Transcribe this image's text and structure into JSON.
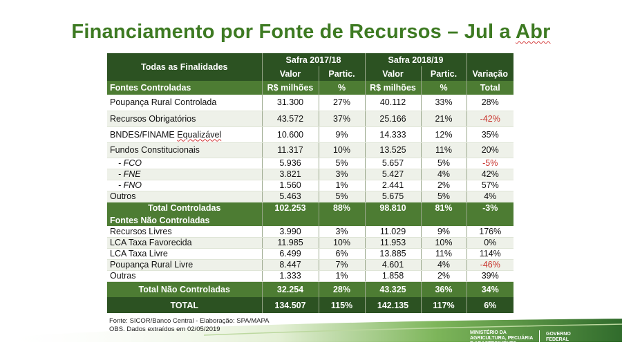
{
  "title": "Financiamento por Fonte de Recursos – Jul a Abr",
  "title_main": "Financiamento por Fonte de Recursos – Jul a ",
  "title_end": "Abr",
  "header": {
    "todas": "Todas as Finalidades",
    "safra1": "Safra 2017/18",
    "safra2": "Safra 2018/19",
    "valor": "Valor",
    "partic": "Partic.",
    "variacao": "Variação",
    "fontes_controladas": "Fontes Controladas",
    "rs_milhoes": "R$ milhões",
    "pct": "%",
    "total": "Total"
  },
  "rows_controladas": [
    {
      "label": "Poupança Rural Controlada",
      "v1": "31.300",
      "p1": "27%",
      "v2": "40.112",
      "p2": "33%",
      "var": "28%"
    },
    {
      "label": "Recursos Obrigatórios",
      "v1": "43.572",
      "p1": "37%",
      "v2": "25.166",
      "p2": "21%",
      "var": "-42%"
    },
    {
      "label_a": "BNDES/FINAME ",
      "label_b": "Equalizável",
      "v1": "10.600",
      "p1": "9%",
      "v2": "14.333",
      "p2": "12%",
      "var": "35%"
    },
    {
      "label": "Fundos Constitucionais",
      "v1": "11.317",
      "p1": "10%",
      "v2": "13.525",
      "p2": "11%",
      "var": "20%"
    },
    {
      "label": "- FCO",
      "v1": "5.936",
      "p1": "5%",
      "v2": "5.657",
      "p2": "5%",
      "var": "-5%"
    },
    {
      "label": "- FNE",
      "v1": "3.821",
      "p1": "3%",
      "v2": "5.427",
      "p2": "4%",
      "var": "42%"
    },
    {
      "label": "- FNO",
      "v1": "1.560",
      "p1": "1%",
      "v2": "2.441",
      "p2": "2%",
      "var": "57%"
    },
    {
      "label": "Outros",
      "v1": "5.463",
      "p1": "5%",
      "v2": "5.675",
      "p2": "5%",
      "var": "4%"
    }
  ],
  "total_controladas": {
    "label": "Total Controladas",
    "v1": "102.253",
    "p1": "88%",
    "v2": "98.810",
    "p2": "81%",
    "var": "-3%"
  },
  "fontes_nao_controladas": "Fontes Não Controladas",
  "rows_nao_controladas": [
    {
      "label": "Recursos Livres",
      "v1": "3.990",
      "p1": "3%",
      "v2": "11.029",
      "p2": "9%",
      "var": "176%"
    },
    {
      "label": "LCA Taxa Favorecida",
      "v1": "11.985",
      "p1": "10%",
      "v2": "11.953",
      "p2": "10%",
      "var": "0%"
    },
    {
      "label": "LCA Taxa Livre",
      "v1": "6.499",
      "p1": "6%",
      "v2": "13.885",
      "p2": "11%",
      "var": "114%"
    },
    {
      "label": "Poupança Rural Livre",
      "v1": "8.447",
      "p1": "7%",
      "v2": "4.601",
      "p2": "4%",
      "var": "-46%"
    },
    {
      "label": "Outras",
      "v1": "1.333",
      "p1": "1%",
      "v2": "1.858",
      "p2": "2%",
      "var": "39%"
    }
  ],
  "total_nao_controladas": {
    "label": "Total Não Controladas",
    "v1": "32.254",
    "p1": "28%",
    "v2": "43.325",
    "p2": "36%",
    "var": "34%"
  },
  "total_geral": {
    "label": "TOTAL",
    "v1": "134.507",
    "p1": "115%",
    "v2": "142.135",
    "p2": "117%",
    "var": "6%"
  },
  "notes": {
    "fonte": "Fonte: SICOR/Banco Central - Elaboração: SPA/MAPA",
    "obs": "OBS. Dados extraídos em 02/05/2019"
  },
  "logo": {
    "mapa_1": "MINISTÉRIO DA",
    "mapa_2": "AGRICULTURA, PECUÁRIA",
    "mapa_3": "E ABASTECIMENTO",
    "gov_1": "GOVERNO",
    "gov_2": "FEDERAL"
  },
  "colors": {
    "title": "#3d7a22",
    "header_dark": "#2c5222",
    "header_mid": "#4d7c33",
    "negative": "#c8322b"
  }
}
